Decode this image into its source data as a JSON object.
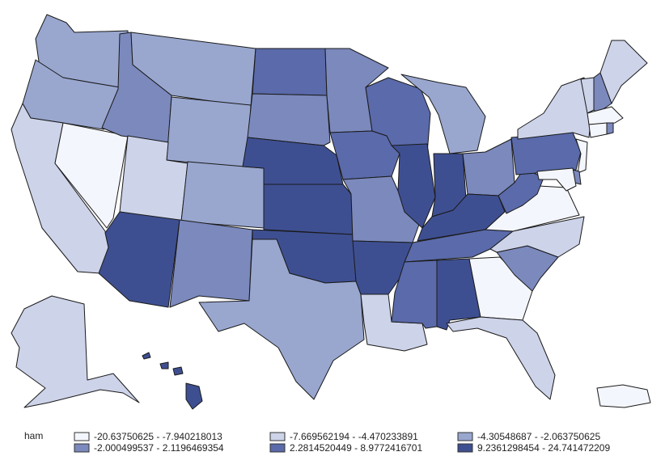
{
  "legend": {
    "title": "ham",
    "classes": [
      {
        "label": "-20.63750625 - -7.940218013",
        "color": "#f4f6fd"
      },
      {
        "label": "-7.669562194 - -4.470233891",
        "color": "#cdd3e9"
      },
      {
        "label": "-4.30548687 - -2.063750625",
        "color": "#99a7cf"
      },
      {
        "label": "-2.000499537 - 2.1196469354",
        "color": "#7b89bd"
      },
      {
        "label": "2.2814520449 - 8.9772416701",
        "color": "#5a6aaa"
      },
      {
        "label": "9.2361298454 - 24.741472209",
        "color": "#3e4f91"
      }
    ]
  },
  "regions": [
    {
      "id": "WA",
      "cls": 2
    },
    {
      "id": "OR",
      "cls": 2
    },
    {
      "id": "CA",
      "cls": 1
    },
    {
      "id": "NV",
      "cls": 0
    },
    {
      "id": "ID",
      "cls": 3
    },
    {
      "id": "MT",
      "cls": 2
    },
    {
      "id": "WY",
      "cls": 2
    },
    {
      "id": "UT",
      "cls": 1
    },
    {
      "id": "AZ",
      "cls": 5
    },
    {
      "id": "CO",
      "cls": 2
    },
    {
      "id": "NM",
      "cls": 3
    },
    {
      "id": "ND",
      "cls": 4
    },
    {
      "id": "SD",
      "cls": 3
    },
    {
      "id": "NE",
      "cls": 5
    },
    {
      "id": "KS",
      "cls": 5
    },
    {
      "id": "OK",
      "cls": 5
    },
    {
      "id": "TX",
      "cls": 2
    },
    {
      "id": "MN",
      "cls": 3
    },
    {
      "id": "IA",
      "cls": 4
    },
    {
      "id": "MO",
      "cls": 3
    },
    {
      "id": "AR",
      "cls": 5
    },
    {
      "id": "LA",
      "cls": 1
    },
    {
      "id": "WI",
      "cls": 4
    },
    {
      "id": "IL",
      "cls": 5
    },
    {
      "id": "MI",
      "cls": 2
    },
    {
      "id": "IN",
      "cls": 5
    },
    {
      "id": "OH",
      "cls": 3
    },
    {
      "id": "KY",
      "cls": 5
    },
    {
      "id": "TN",
      "cls": 4
    },
    {
      "id": "MS",
      "cls": 4
    },
    {
      "id": "AL",
      "cls": 5
    },
    {
      "id": "GA",
      "cls": 0
    },
    {
      "id": "FL",
      "cls": 1
    },
    {
      "id": "SC",
      "cls": 3
    },
    {
      "id": "NC",
      "cls": 1
    },
    {
      "id": "VA",
      "cls": 0
    },
    {
      "id": "WV",
      "cls": 4
    },
    {
      "id": "PA",
      "cls": 4
    },
    {
      "id": "NY",
      "cls": 1
    },
    {
      "id": "ME",
      "cls": 1
    },
    {
      "id": "VT",
      "cls": 1
    },
    {
      "id": "NH",
      "cls": 3
    },
    {
      "id": "MA",
      "cls": 0
    },
    {
      "id": "CT",
      "cls": 0
    },
    {
      "id": "RI",
      "cls": 3
    },
    {
      "id": "NJ",
      "cls": 0
    },
    {
      "id": "DE",
      "cls": 3
    },
    {
      "id": "MD",
      "cls": 0
    },
    {
      "id": "AK",
      "cls": 1
    },
    {
      "id": "HI",
      "cls": 5
    },
    {
      "id": "PR",
      "cls": 0
    }
  ]
}
